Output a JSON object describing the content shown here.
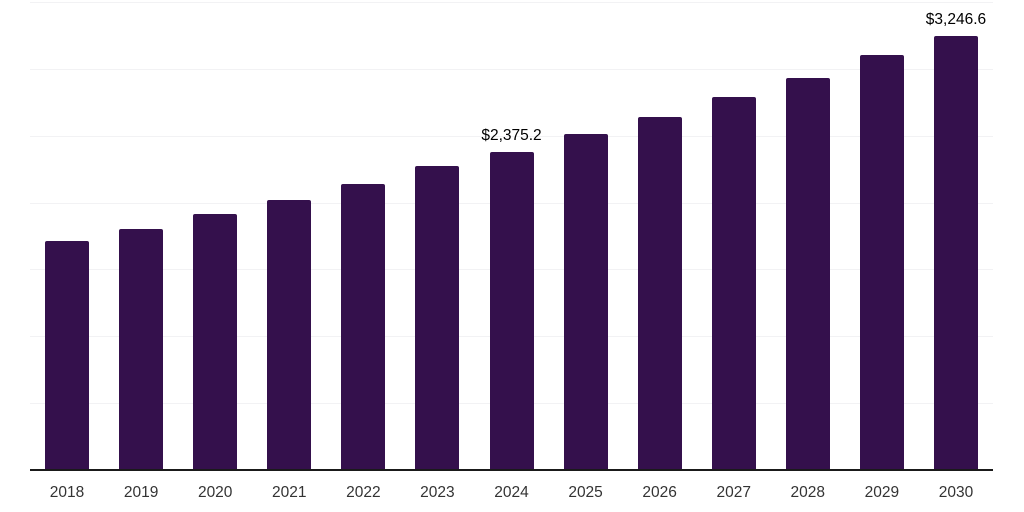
{
  "chart_data": {
    "type": "bar",
    "title": "",
    "xlabel": "",
    "ylabel": "",
    "categories": [
      "2018",
      "2019",
      "2020",
      "2021",
      "2022",
      "2023",
      "2024",
      "2025",
      "2026",
      "2027",
      "2028",
      "2029",
      "2030"
    ],
    "values": [
      1710,
      1805,
      1915,
      2020,
      2140,
      2270,
      2375.2,
      2515,
      2640,
      2790,
      2930,
      3105,
      3246.6
    ],
    "value_labels": {
      "2024": "$2,375.2",
      "2030": "$3,246.6"
    },
    "ylim": [
      0,
      3500
    ],
    "gridline_step": 500,
    "grid": "horizontal",
    "legend": "none",
    "colors": {
      "bar": "#34104c",
      "gridline": "#f2f2f4",
      "axis_line": "#1a1a1a",
      "tick_label": "#333333",
      "value_label": "#000000",
      "background": "#ffffff"
    }
  }
}
